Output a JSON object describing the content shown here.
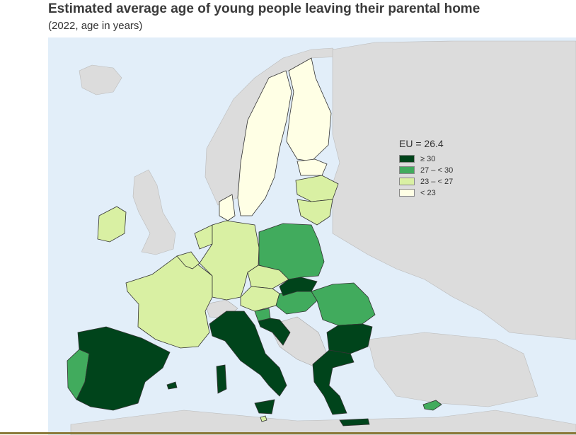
{
  "title": "Estimated average age of young people leaving their parental home",
  "subtitle": "(2022, age in years)",
  "legend": {
    "title": "EU = 26.4",
    "items": [
      {
        "label": "≥ 30",
        "color": "#00441b"
      },
      {
        "label": "27 – < 30",
        "color": "#41ab5d"
      },
      {
        "label": "23 – < 27",
        "color": "#d9f0a3"
      },
      {
        "label": "< 23",
        "color": "#ffffe5"
      }
    ]
  },
  "colors": {
    "sea": "#e2eef9",
    "non_eu_land": "#dcdcdc",
    "border": "#333333"
  }
}
